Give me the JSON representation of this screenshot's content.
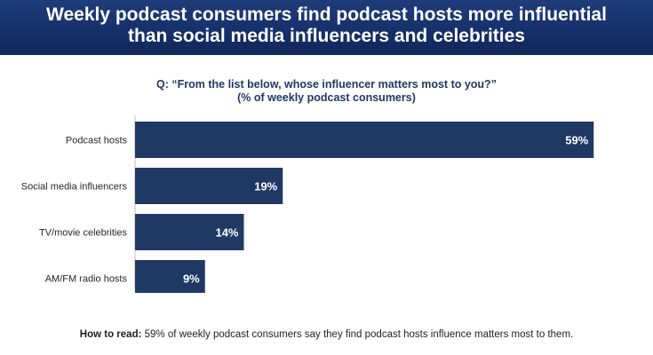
{
  "banner": {
    "title": "Weekly podcast consumers find podcast hosts more influential\nthan social media influencers and celebrities"
  },
  "question": {
    "line1": "Q: “From the list below, whose influencer matters most to you?”",
    "line2": "(% of weekly podcast consumers)"
  },
  "chart_data": {
    "type": "bar",
    "orientation": "horizontal",
    "categories": [
      "Podcast hosts",
      "Social media influencers",
      "TV/movie celebrities",
      "AM/FM radio hosts"
    ],
    "values": [
      59,
      19,
      14,
      9
    ],
    "value_labels": [
      "59%",
      "19%",
      "14%",
      "9%"
    ],
    "bar_color": "#1f3864",
    "label_color": "#ffffff"
  },
  "footnote": {
    "lead": "How to read:",
    "text": " 59% of weekly podcast consumers say they find podcast hosts influence matters most to them."
  },
  "colors": {
    "banner": "#16306a",
    "accent": "#1f3864"
  }
}
